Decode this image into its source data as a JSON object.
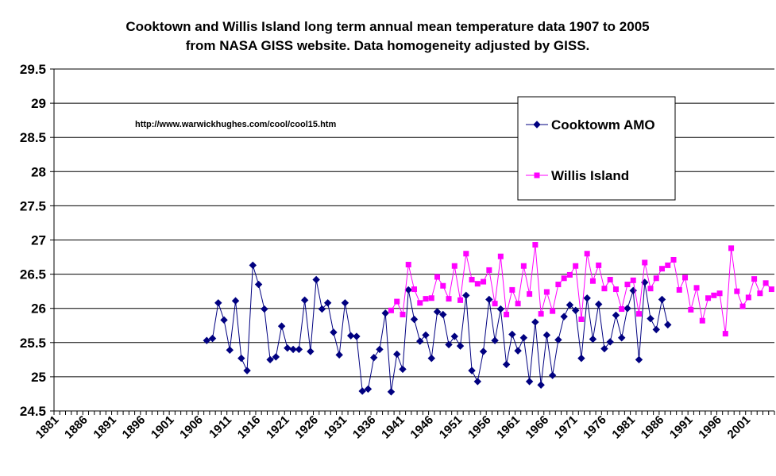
{
  "chart_data": {
    "type": "line",
    "title": "Cooktown and Willis Island long term annual mean temperature data 1907 to 2005",
    "subtitle": "from NASA GISS website.  Data homogeneity adjusted by GISS.",
    "annotation": "http://www.warwickhughes.com/cool/cool15.htm",
    "xlim": [
      1880.5,
      2005.5
    ],
    "xticks": [
      1881,
      1886,
      1891,
      1896,
      1901,
      1906,
      1911,
      1916,
      1921,
      1926,
      1931,
      1936,
      1941,
      1946,
      1951,
      1956,
      1961,
      1966,
      1971,
      1976,
      1981,
      1986,
      1991,
      1996,
      2001
    ],
    "ylim": [
      24.5,
      29.5
    ],
    "yticks": [
      24.5,
      25,
      25.5,
      26,
      26.5,
      27,
      27.5,
      28,
      28.5,
      29,
      29.5
    ],
    "grid": true,
    "legend": "upper right",
    "series": [
      {
        "name": "Cooktowm AMO",
        "color": "#000080",
        "marker": "diamond",
        "x": [
          1907,
          1908,
          1909,
          1910,
          1911,
          1912,
          1913,
          1914,
          1915,
          1916,
          1917,
          1918,
          1919,
          1920,
          1921,
          1922,
          1923,
          1924,
          1925,
          1926,
          1927,
          1928,
          1929,
          1930,
          1931,
          1932,
          1933,
          1934,
          1935,
          1936,
          1937,
          1938,
          1939,
          1940,
          1941,
          1942,
          1943,
          1944,
          1945,
          1946,
          1947,
          1948,
          1949,
          1950,
          1951,
          1952,
          1953,
          1954,
          1955,
          1956,
          1957,
          1958,
          1959,
          1960,
          1961,
          1962,
          1963,
          1964,
          1965,
          1966,
          1967,
          1968,
          1969,
          1970,
          1971,
          1972,
          1973,
          1974,
          1975,
          1976,
          1977,
          1978,
          1979,
          1980,
          1981,
          1982,
          1983,
          1984,
          1985,
          1986,
          1987
        ],
        "values": [
          25.53,
          25.56,
          26.08,
          25.83,
          25.39,
          26.11,
          25.27,
          25.09,
          26.63,
          26.35,
          25.99,
          25.25,
          25.29,
          25.74,
          25.42,
          25.4,
          25.4,
          26.12,
          25.37,
          26.42,
          25.99,
          26.08,
          25.65,
          25.32,
          26.08,
          25.6,
          25.59,
          24.79,
          24.82,
          25.28,
          25.4,
          25.93,
          24.78,
          25.33,
          25.11,
          26.27,
          25.84,
          25.52,
          25.61,
          25.27,
          25.95,
          25.91,
          25.47,
          25.59,
          25.45,
          26.19,
          25.09,
          24.93,
          25.37,
          26.13,
          25.53,
          25.99,
          25.18,
          25.62,
          25.38,
          25.57,
          24.93,
          25.8,
          24.88,
          25.61,
          25.02,
          25.54,
          25.88,
          26.05,
          25.97,
          25.27,
          26.15,
          25.55,
          26.06,
          25.41,
          25.51,
          25.9,
          25.57,
          26.0,
          26.26,
          25.25,
          26.38,
          25.85,
          25.69,
          26.13,
          25.76
        ]
      },
      {
        "name": "Willis Island",
        "color": "#ff00ff",
        "marker": "square",
        "x": [
          1939,
          1940,
          1941,
          1942,
          1943,
          1944,
          1945,
          1946,
          1947,
          1948,
          1949,
          1950,
          1951,
          1952,
          1953,
          1954,
          1955,
          1956,
          1957,
          1958,
          1959,
          1960,
          1961,
          1962,
          1963,
          1964,
          1965,
          1966,
          1967,
          1968,
          1969,
          1970,
          1971,
          1972,
          1973,
          1974,
          1975,
          1976,
          1977,
          1978,
          1979,
          1980,
          1981,
          1982,
          1983,
          1984,
          1985,
          1986,
          1987,
          1988,
          1989,
          1990,
          1991,
          1992,
          1993,
          1994,
          1995,
          1996,
          1997,
          1998,
          1999,
          2000,
          2001,
          2002,
          2003,
          2004,
          2005
        ],
        "values": [
          25.97,
          26.1,
          25.91,
          26.64,
          26.28,
          26.08,
          26.14,
          26.15,
          26.46,
          26.33,
          26.14,
          26.62,
          26.12,
          26.8,
          26.42,
          26.36,
          26.39,
          26.56,
          26.07,
          26.76,
          25.91,
          26.27,
          26.07,
          26.62,
          26.21,
          26.93,
          25.92,
          26.24,
          25.96,
          26.35,
          26.44,
          26.49,
          26.62,
          25.84,
          26.8,
          26.4,
          26.63,
          26.29,
          26.42,
          26.28,
          25.99,
          26.35,
          26.41,
          25.92,
          26.67,
          26.29,
          26.44,
          26.58,
          26.63,
          26.71,
          26.27,
          26.45,
          25.98,
          26.3,
          25.82,
          26.15,
          26.19,
          26.22,
          25.63,
          26.88,
          26.25,
          26.03,
          26.16,
          26.43,
          26.22,
          26.37,
          26.28
        ]
      }
    ]
  }
}
